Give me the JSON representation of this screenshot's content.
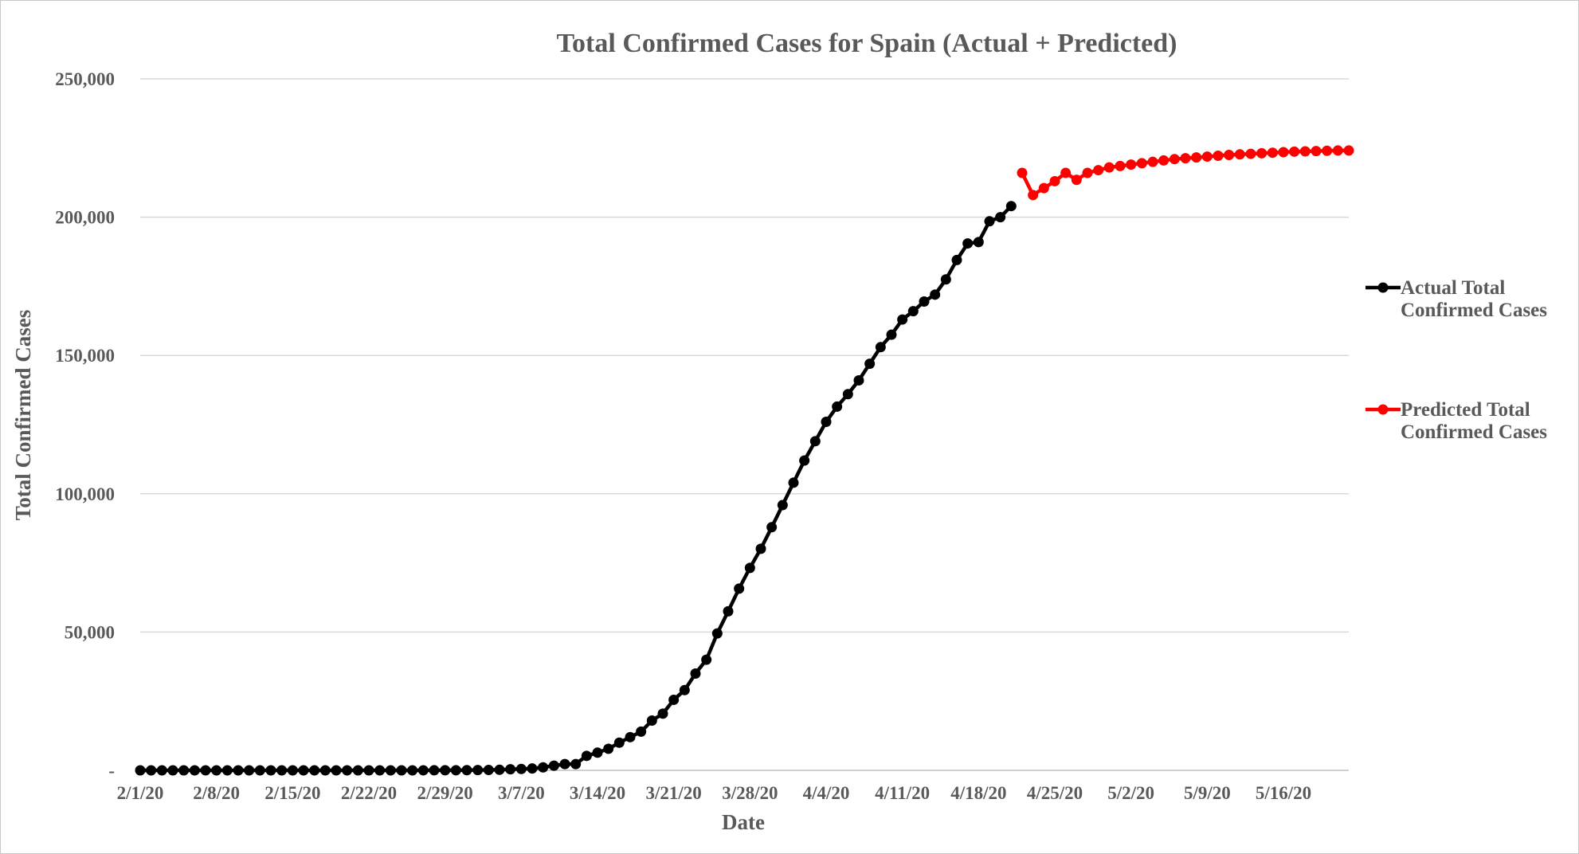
{
  "chart_data": {
    "type": "line",
    "title": "Total Confirmed Cases for Spain (Actual + Predicted)",
    "xlabel": "Date",
    "ylabel": "Total Confirmed Cases",
    "ylim": [
      0,
      250000
    ],
    "yticks": [
      "-",
      "50,000",
      "100,000",
      "150,000",
      "200,000",
      "250,000"
    ],
    "xticks": [
      "2/1/20",
      "2/8/20",
      "2/15/20",
      "2/22/20",
      "2/29/20",
      "3/7/20",
      "3/14/20",
      "3/21/20",
      "3/28/20",
      "4/4/20",
      "4/11/20",
      "4/18/20",
      "4/25/20",
      "5/2/20",
      "5/9/20",
      "5/16/20"
    ],
    "x_range": [
      "2/1/20",
      "5/22/20"
    ],
    "grid": true,
    "legend_position": "right",
    "series": [
      {
        "name": "Actual Total Confirmed Cases",
        "legend_lines": [
          "Actual Total",
          "Confirmed Cases"
        ],
        "color": "#000000",
        "x_start": "2/1/20",
        "values": [
          1,
          1,
          1,
          1,
          1,
          1,
          1,
          1,
          2,
          2,
          2,
          2,
          2,
          2,
          2,
          2,
          2,
          2,
          2,
          2,
          2,
          2,
          2,
          2,
          2,
          3,
          12,
          25,
          32,
          45,
          66,
          114,
          151,
          200,
          400,
          500,
          673,
          1073,
          1695,
          2277,
          2277,
          5232,
          6391,
          7798,
          10000,
          12000,
          14000,
          18000,
          20500,
          25500,
          29000,
          35000,
          40000,
          49500,
          57500,
          65700,
          73200,
          80100,
          87900,
          95900,
          104000,
          112000,
          119000,
          126000,
          131500,
          136000,
          141000,
          147000,
          153000,
          157500,
          163000,
          166000,
          169500,
          172000,
          177500,
          184500,
          190500,
          191000,
          198500,
          200000,
          204000
        ]
      },
      {
        "name": "Predicted Total Confirmed Cases",
        "legend_lines": [
          "Predicted Total",
          "Confirmed Cases"
        ],
        "color": "#ff0000",
        "x_start": "4/22/20",
        "values": [
          216000,
          208000,
          210500,
          213000,
          216000,
          213500,
          216000,
          217000,
          218000,
          218500,
          219000,
          219500,
          220000,
          220500,
          221000,
          221300,
          221600,
          221900,
          222200,
          222500,
          222700,
          222900,
          223100,
          223300,
          223500,
          223700,
          223800,
          223900,
          224000,
          224100,
          224100
        ]
      }
    ]
  }
}
